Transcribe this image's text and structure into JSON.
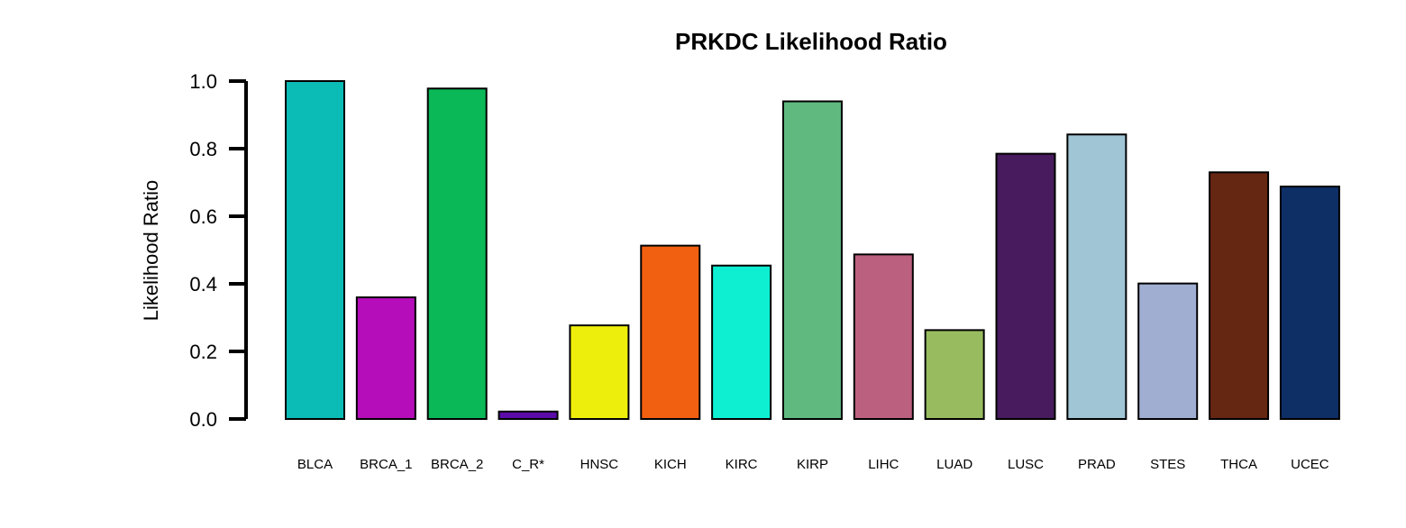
{
  "chart_data": {
    "type": "bar",
    "title": "PRKDC Likelihood Ratio",
    "xlabel": "",
    "ylabel": "Likelihood Ratio",
    "ylim": [
      0,
      1
    ],
    "yticks": [
      0.0,
      0.2,
      0.4,
      0.6,
      0.8,
      1.0
    ],
    "ytick_labels": [
      "0.0",
      "0.2",
      "0.4",
      "0.6",
      "0.8",
      "1.0"
    ],
    "grid": false,
    "categories": [
      "BLCA",
      "BRCA_1",
      "BRCA_2",
      "C_R*",
      "HNSC",
      "KICH",
      "KIRC",
      "KIRP",
      "LIHC",
      "LUAD",
      "LUSC",
      "PRAD",
      "STES",
      "THCA",
      "UCEC"
    ],
    "values": [
      1.0,
      0.36,
      0.978,
      0.022,
      0.277,
      0.513,
      0.454,
      0.94,
      0.487,
      0.263,
      0.785,
      0.842,
      0.401,
      0.73,
      0.688
    ],
    "colors": [
      "#0BBBB5",
      "#B50DBA",
      "#0BB857",
      "#5B0BA8",
      "#EEEE0C",
      "#F06010",
      "#0EEFD2",
      "#60BA80",
      "#BC6080",
      "#98BB60",
      "#471B5E",
      "#A0C5D5",
      "#A0AED2",
      "#652612",
      "#0E2F66"
    ]
  }
}
